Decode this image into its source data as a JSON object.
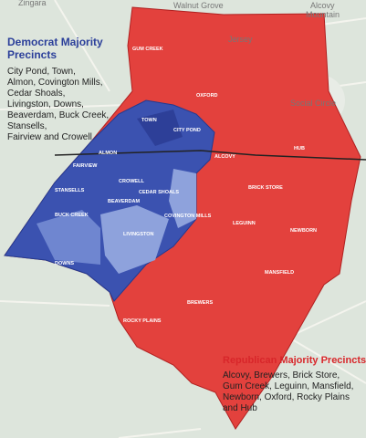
{
  "legend": {
    "democrat": {
      "title": [
        "Democrat Majority",
        "Precincts"
      ],
      "lines": [
        "City Pond, Town,",
        "Almon, Covington Mills,",
        "Cedar Shoals,",
        "Livingston, Downs,",
        "Beaverdam, Buck Creek,",
        "Stansells,",
        "Fairview and Crowell"
      ]
    },
    "republican": {
      "title": [
        "Republican Majority Precincts"
      ],
      "lines": [
        "Alcovy, Brewers, Brick Store,",
        "Gum Creek, Leguinn, Mansfield,",
        "Newborn, Oxford, Rocky Plains",
        "and Hub"
      ]
    }
  },
  "places": [
    "Zingara",
    "Walnut Grove",
    "Alcovy",
    "Mountain",
    "Jersey",
    "Social Circle"
  ],
  "precincts": [
    "GUM CREEK",
    "OXFORD",
    "TOWN",
    "CITY POND",
    "ALMON",
    "FAIRVIEW",
    "STANSELLS",
    "BUCK CREEK",
    "BEAVERDAM",
    "CROWELL",
    "CEDAR SHOALS",
    "COVINGTON MILLS",
    "LIVINGSTON",
    "DOWNS",
    "ALCOVY",
    "HUB",
    "BRICK STORE",
    "LEGUINN",
    "NEWBORN",
    "MANSFIELD",
    "BREWERS",
    "ROCKY PLAINS"
  ]
}
